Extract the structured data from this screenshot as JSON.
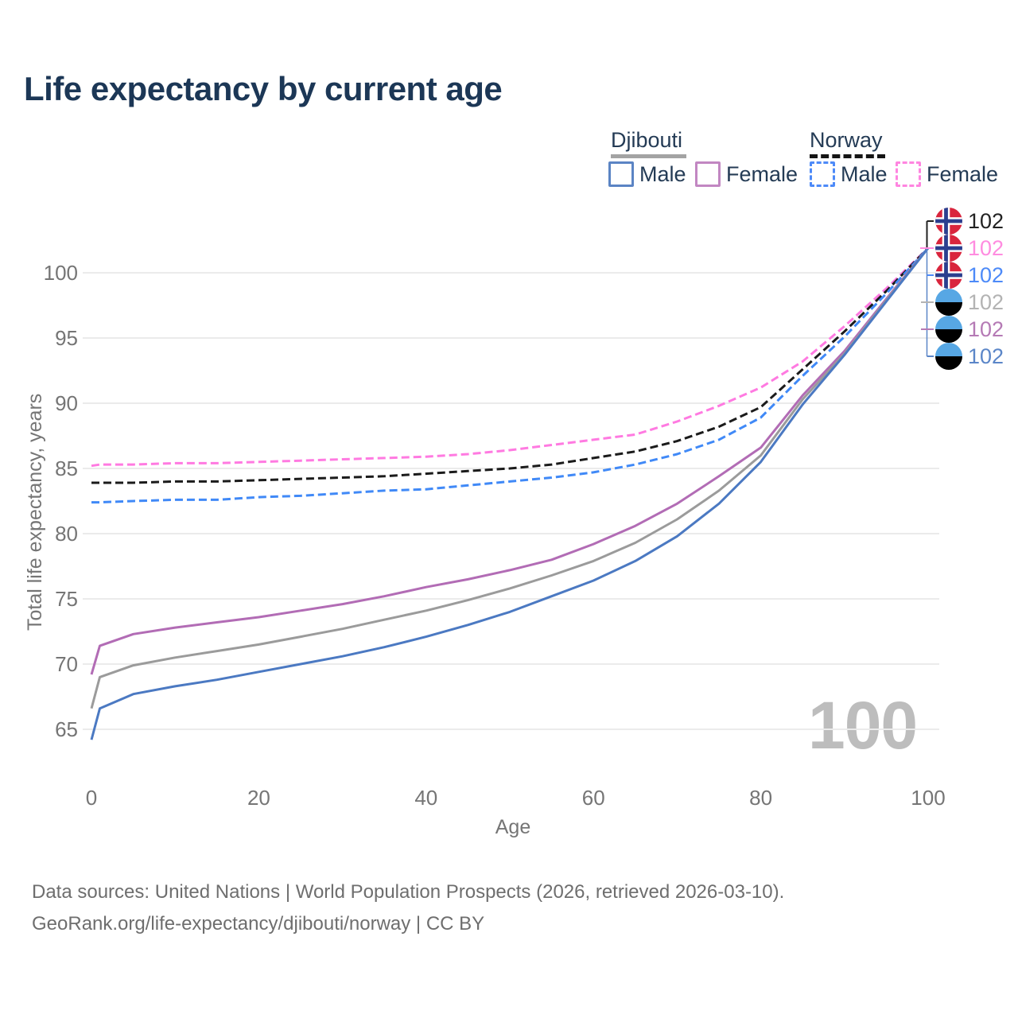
{
  "title": "Life expectancy by current age",
  "legend": {
    "groups": [
      {
        "name": "Djibouti",
        "underline_color": "#a3a3a3",
        "dashed": false,
        "items": [
          {
            "label": "Male",
            "color": "#5b84c4"
          },
          {
            "label": "Female",
            "color": "#c287c2"
          }
        ]
      },
      {
        "name": "Norway",
        "underline_color": "#151515",
        "dashed": true,
        "items": [
          {
            "label": "Male",
            "color": "#4d8af8"
          },
          {
            "label": "Female",
            "color": "#ff85e0"
          }
        ]
      }
    ]
  },
  "chart_data": {
    "type": "line",
    "title": "Life expectancy by current age",
    "xlabel": "Age",
    "ylabel": "Total life expectancy, years",
    "xticks": [
      0,
      20,
      40,
      60,
      80,
      100
    ],
    "yticks": [
      65,
      70,
      75,
      80,
      85,
      90,
      95,
      100
    ],
    "xlim": [
      0,
      100
    ],
    "ylim": [
      63.5,
      103
    ],
    "grid": "horizontal",
    "x": [
      0,
      1,
      5,
      10,
      15,
      20,
      25,
      30,
      35,
      40,
      45,
      50,
      55,
      60,
      65,
      70,
      75,
      80,
      85,
      90,
      95,
      100
    ],
    "series": [
      {
        "id": "norway-female",
        "country": "Norway",
        "sex": "Female",
        "color": "#ff7ae1",
        "dash": true,
        "values": [
          85.2,
          85.3,
          85.3,
          85.4,
          85.4,
          85.5,
          85.6,
          85.7,
          85.8,
          85.9,
          86.1,
          86.4,
          86.8,
          87.2,
          87.6,
          88.6,
          89.8,
          91.2,
          93.2,
          95.9,
          98.8,
          101.9
        ]
      },
      {
        "id": "norway-both",
        "country": "Norway",
        "sex": "Both sexes",
        "color": "#1b1b1b",
        "dash": true,
        "values": [
          83.9,
          83.9,
          83.9,
          84.0,
          84.0,
          84.1,
          84.2,
          84.3,
          84.4,
          84.6,
          84.8,
          85.0,
          85.3,
          85.8,
          86.3,
          87.1,
          88.2,
          89.7,
          92.6,
          95.5,
          98.6,
          101.9
        ]
      },
      {
        "id": "norway-male",
        "country": "Norway",
        "sex": "Male",
        "color": "#4089f7",
        "dash": true,
        "values": [
          82.4,
          82.4,
          82.5,
          82.6,
          82.6,
          82.8,
          82.9,
          83.1,
          83.3,
          83.4,
          83.7,
          84.0,
          84.3,
          84.7,
          85.3,
          86.1,
          87.2,
          88.9,
          92.1,
          95.1,
          98.4,
          101.9
        ]
      },
      {
        "id": "djibouti-female",
        "country": "Djibouti",
        "sex": "Female",
        "color": "#b26cb5",
        "dash": false,
        "values": [
          69.2,
          71.4,
          72.3,
          72.8,
          73.2,
          73.6,
          74.1,
          74.6,
          75.2,
          75.9,
          76.5,
          77.2,
          78.0,
          79.2,
          80.6,
          82.3,
          84.4,
          86.6,
          90.6,
          94.0,
          98.0,
          101.9
        ]
      },
      {
        "id": "djibouti-both",
        "country": "Djibouti",
        "sex": "Both sexes",
        "color": "#9b9b9b",
        "dash": false,
        "values": [
          66.6,
          69.0,
          69.9,
          70.5,
          71.0,
          71.5,
          72.1,
          72.7,
          73.4,
          74.1,
          74.9,
          75.8,
          76.8,
          77.9,
          79.3,
          81.1,
          83.3,
          86.0,
          90.3,
          93.8,
          97.9,
          101.9
        ]
      },
      {
        "id": "djibouti-male",
        "country": "Djibouti",
        "sex": "Male",
        "color": "#4b79c2",
        "dash": false,
        "values": [
          64.2,
          66.6,
          67.7,
          68.3,
          68.8,
          69.4,
          70.0,
          70.6,
          71.3,
          72.1,
          73.0,
          74.0,
          75.2,
          76.4,
          77.9,
          79.8,
          82.3,
          85.5,
          89.9,
          93.7,
          97.8,
          101.9
        ]
      }
    ],
    "legend_position": "top-right"
  },
  "end_labels": [
    {
      "flag": "norway",
      "series": "norway-both",
      "value": "102",
      "color": "#222222"
    },
    {
      "flag": "norway",
      "series": "norway-female",
      "value": "102",
      "color": "#ff8ce0"
    },
    {
      "flag": "norway",
      "series": "norway-male",
      "value": "102",
      "color": "#4d8af8"
    },
    {
      "flag": "djibouti",
      "series": "djibouti-both",
      "value": "102",
      "color": "#b3b3b3"
    },
    {
      "flag": "djibouti",
      "series": "djibouti-female",
      "value": "102",
      "color": "#b57ab5"
    },
    {
      "flag": "djibouti",
      "series": "djibouti-male",
      "value": "102",
      "color": "#5b86c8"
    }
  ],
  "watermark": "100",
  "footer": {
    "line1": "Data sources: United Nations | World Population Prospects (2026, retrieved 2026-03-10).",
    "line2": "GeoRank.org/life-expectancy/djibouti/norway | CC BY"
  },
  "colors": {
    "title": "#1c3756",
    "axis_text": "#757575",
    "gridline": "#ebebeb",
    "watermark": "#bdbdbd",
    "footer_text": "#6e6e6e"
  }
}
